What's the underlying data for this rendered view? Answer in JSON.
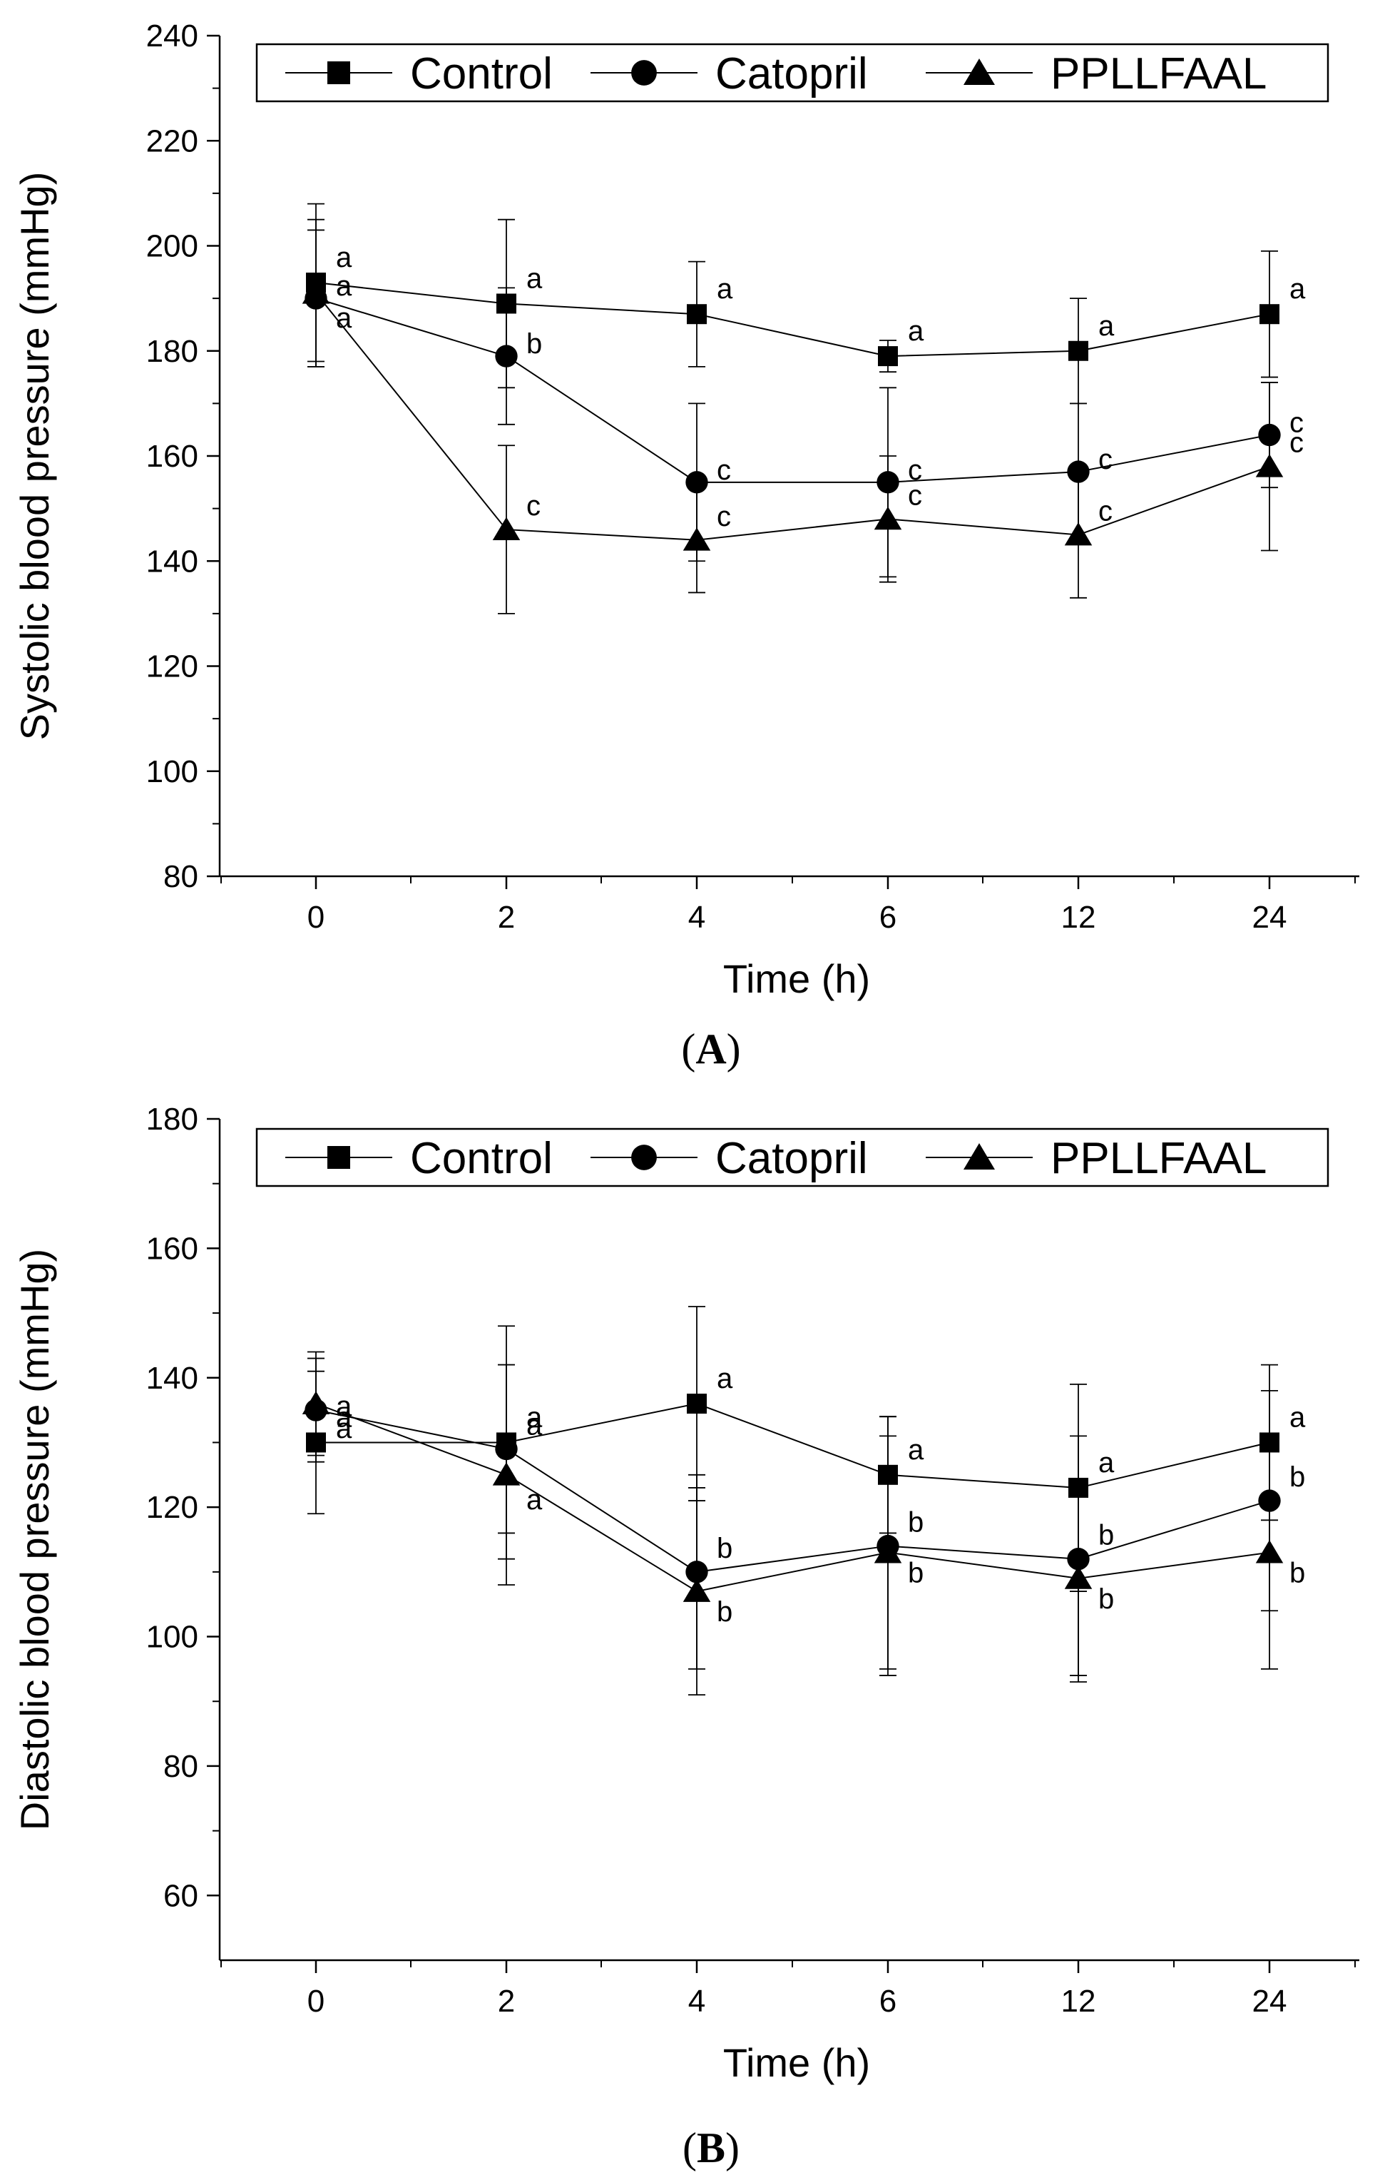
{
  "chart_data": [
    {
      "type": "line",
      "panel_label": "A",
      "xlabel": "Time (h)",
      "ylabel": "Systolic blood pressure (mmHg)",
      "categories": [
        "0",
        "2",
        "4",
        "6",
        "12",
        "24"
      ],
      "ylim": [
        80,
        240
      ],
      "yticks": [
        80,
        100,
        120,
        140,
        160,
        180,
        200,
        220,
        240
      ],
      "legend_position": "top",
      "series": [
        {
          "name": "Control",
          "marker": "square",
          "values": [
            193,
            189,
            187,
            179,
            180,
            187
          ],
          "errors": [
            15,
            16,
            10,
            3,
            10,
            12
          ],
          "letters": [
            "a",
            "a",
            "a",
            "a",
            "a",
            "a"
          ]
        },
        {
          "name": "Catopril",
          "marker": "circle",
          "values": [
            190,
            179,
            155,
            155,
            157,
            164
          ],
          "errors": [
            13,
            13,
            15,
            18,
            13,
            10
          ],
          "letters": [
            "a",
            "b",
            "c",
            "c",
            "c",
            "c"
          ]
        },
        {
          "name": "PPLLFAAL",
          "marker": "triangle",
          "values": [
            191,
            146,
            144,
            148,
            145,
            158
          ],
          "errors": [
            14,
            16,
            10,
            12,
            12,
            16
          ],
          "letters": [
            "a",
            "c",
            "c",
            "c",
            "c",
            "c"
          ]
        }
      ]
    },
    {
      "type": "line",
      "panel_label": "B",
      "xlabel": "Time (h)",
      "ylabel": "Diastolic blood pressure (mmHg)",
      "categories": [
        "0",
        "2",
        "4",
        "6",
        "12",
        "24"
      ],
      "ylim": [
        50,
        180
      ],
      "yticks": [
        60,
        80,
        100,
        120,
        140,
        160,
        180
      ],
      "legend_position": "top",
      "series": [
        {
          "name": "Control",
          "marker": "square",
          "values": [
            130,
            130,
            136,
            125,
            123,
            130
          ],
          "errors": [
            11,
            18,
            15,
            9,
            16,
            12
          ],
          "letters": [
            "a",
            "a",
            "a",
            "a",
            "a",
            "a"
          ]
        },
        {
          "name": "Catopril",
          "marker": "circle",
          "values": [
            135,
            129,
            110,
            114,
            112,
            121
          ],
          "errors": [
            8,
            13,
            15,
            20,
            19,
            17
          ],
          "letters": [
            "a",
            "a",
            "b",
            "b",
            "b",
            "b"
          ]
        },
        {
          "name": "PPLLFAAL",
          "marker": "triangle",
          "values": [
            136,
            125,
            107,
            113,
            109,
            113
          ],
          "errors": [
            8,
            17,
            16,
            18,
            15,
            18
          ],
          "letters": [
            "a",
            "a",
            "b",
            "b",
            "b",
            "b"
          ]
        }
      ]
    }
  ]
}
